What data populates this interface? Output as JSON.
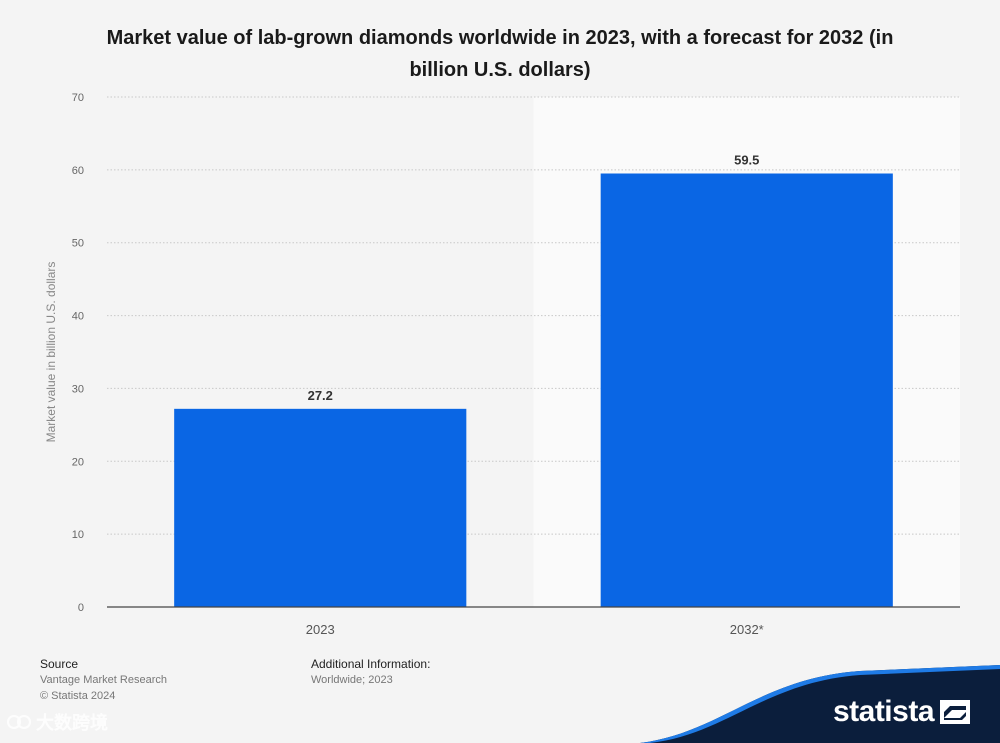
{
  "chart_data": {
    "type": "bar",
    "title": "Market value of lab-grown diamonds worldwide in 2023, with a forecast for 2032 (in billion U.S. dollars)",
    "categories": [
      "2023",
      "2032*"
    ],
    "values": [
      27.2,
      59.5
    ],
    "value_labels": [
      "27.2",
      "59.5"
    ],
    "xlabel": "",
    "ylabel": "Market value in billion U.S. dollars",
    "ylim": [
      0,
      70
    ],
    "yticks": [
      0,
      10,
      20,
      30,
      40,
      50,
      60,
      70
    ],
    "grid": true,
    "forecast_region_start_category": "2032*"
  },
  "colors": {
    "bar": "#0a66e4",
    "background": "#f4f4f4",
    "forecast_background": "#fafafa",
    "brand_band": "#0b1e3c",
    "brand_accent": "#1f7be6"
  },
  "footer": {
    "source_heading": "Source",
    "source_text": "Vantage Market Research",
    "copyright": "© Statista 2024",
    "additional_heading": "Additional Information:",
    "additional_text": "Worldwide; 2023"
  },
  "brand": {
    "name": "statista",
    "icon": "statista-logo-icon"
  },
  "watermark": {
    "text": "大数跨境"
  }
}
